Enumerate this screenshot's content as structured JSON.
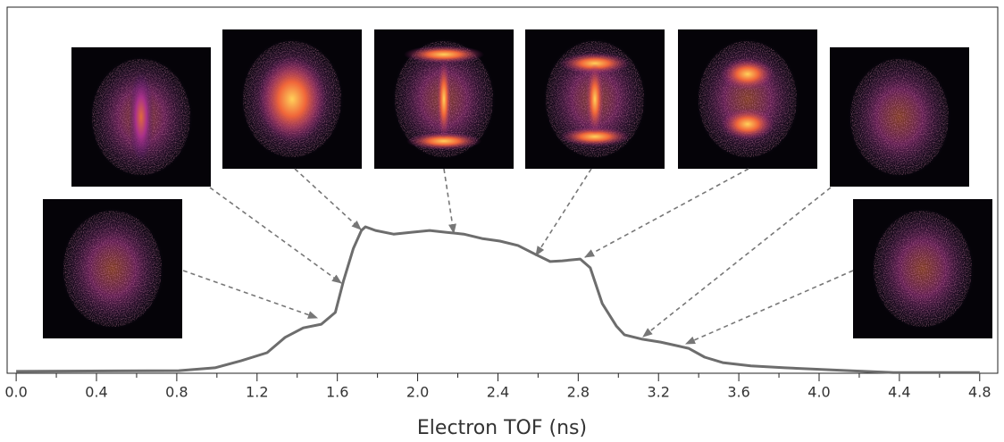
{
  "chart_data": {
    "type": "line",
    "x_label": "Electron TOF (ns)",
    "x": [
      0,
      0.81,
      0.99,
      1.12,
      1.25,
      1.34,
      1.43,
      1.52,
      1.59,
      1.63,
      1.68,
      1.72,
      1.74,
      1.79,
      1.88,
      1.97,
      2.06,
      2.14,
      2.23,
      2.32,
      2.41,
      2.5,
      2.59,
      2.66,
      2.72,
      2.81,
      2.86,
      2.92,
      2.99,
      3.03,
      3.12,
      3.21,
      3.35,
      3.43,
      3.52,
      3.66,
      3.83,
      4.15,
      4.37,
      4.8
    ],
    "values": [
      0.5,
      0.7,
      1.5,
      3.4,
      5.6,
      9.8,
      12.4,
      13.4,
      16.6,
      25.1,
      34.1,
      39.0,
      40.0,
      39.0,
      38.0,
      38.5,
      39.0,
      38.5,
      38.0,
      36.8,
      36.1,
      34.9,
      32.4,
      30.5,
      30.7,
      31.2,
      28.8,
      19.0,
      12.9,
      10.5,
      9.3,
      8.5,
      6.8,
      4.4,
      2.9,
      2.0,
      1.5,
      0.7,
      0.2,
      0.2
    ],
    "color": "#6d6d6d",
    "xlim": [
      -0.045,
      4.89
    ],
    "ylim": [
      0,
      100
    ],
    "xticks": [
      {
        "value": 0,
        "label": "0.0"
      },
      0.4,
      0.8,
      1.2,
      1.6,
      {
        "value": 2,
        "label": "2.0"
      },
      2.4,
      2.8,
      3.2,
      3.6,
      {
        "value": 4,
        "label": "4.0"
      },
      4.4,
      4.8
    ]
  }
}
